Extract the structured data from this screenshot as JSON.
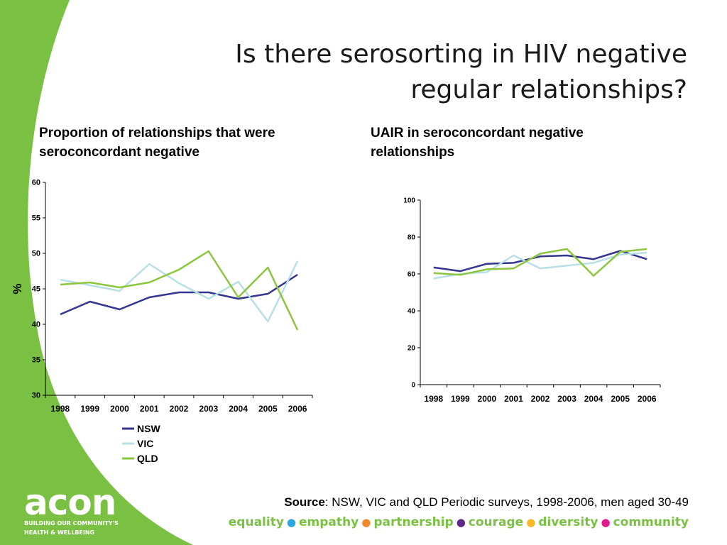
{
  "title_line1": "Is there serosorting in HIV negative",
  "title_line2": "regular relationships?",
  "colors": {
    "brand_green": "#7ac143",
    "nsw": "#33358f",
    "vic": "#b9dfe6",
    "qld": "#8cc63f"
  },
  "chart_data": [
    {
      "type": "line",
      "title": "Proportion of relationships that were seroconcordant negative",
      "ylabel": "%",
      "xlabel": "",
      "x": [
        "1998",
        "1999",
        "2000",
        "2001",
        "2002",
        "2003",
        "2004",
        "2005",
        "2006"
      ],
      "ylim": [
        30,
        60
      ],
      "yticks": [
        30,
        35,
        40,
        45,
        50,
        55,
        60
      ],
      "legend_position": "bottom",
      "series": [
        {
          "name": "NSW",
          "color": "#33358f",
          "values": [
            41.4,
            43.2,
            42.1,
            43.8,
            44.5,
            44.5,
            43.6,
            44.3,
            47.0
          ]
        },
        {
          "name": "VIC",
          "color": "#b9dfe6",
          "values": [
            46.3,
            45.5,
            44.7,
            48.5,
            45.8,
            43.6,
            46.0,
            40.4,
            48.9
          ]
        },
        {
          "name": "QLD",
          "color": "#8cc63f",
          "values": [
            45.6,
            45.9,
            45.2,
            45.9,
            47.7,
            50.3,
            43.8,
            48.0,
            39.2
          ]
        }
      ]
    },
    {
      "type": "line",
      "title": "UAIR in seroconcordant negative relationships",
      "ylabel": "",
      "xlabel": "",
      "x": [
        "1998",
        "1999",
        "2000",
        "2001",
        "2002",
        "2003",
        "2004",
        "2005",
        "2006"
      ],
      "ylim": [
        0,
        100
      ],
      "yticks": [
        0,
        20,
        40,
        60,
        80,
        100
      ],
      "series": [
        {
          "color": "#33358f",
          "values": [
            63.5,
            61.5,
            65.5,
            66.0,
            69.5,
            70.0,
            68.0,
            72.5,
            68.0
          ]
        },
        {
          "color": "#b9dfe6",
          "values": [
            57.5,
            60.0,
            61.0,
            70.0,
            63.0,
            64.5,
            66.0,
            70.5,
            71.5
          ]
        },
        {
          "color": "#8cc63f",
          "values": [
            60.5,
            59.5,
            62.5,
            63.0,
            71.0,
            73.5,
            59.0,
            72.0,
            73.5
          ]
        }
      ]
    }
  ],
  "source": {
    "label": "Source",
    "text": ": NSW, VIC and QLD Periodic surveys, 1998-2006, men aged 30-49"
  },
  "values_bar": [
    {
      "word": "equality",
      "dot_color": "#29a9e0"
    },
    {
      "word": "empathy",
      "dot_color": "#f08a2a"
    },
    {
      "word": "partnership",
      "dot_color": "#5b2a86"
    },
    {
      "word": "courage",
      "dot_color": "#f7b82a"
    },
    {
      "word": "diversity",
      "dot_color": "#e0198c"
    },
    {
      "word": "community",
      "dot_color": ""
    }
  ],
  "logo": {
    "word": "acon",
    "tagline_line1": "BUILDING OUR COMMUNITY'S",
    "tagline_line2": "HEALTH & WELLBEING"
  }
}
